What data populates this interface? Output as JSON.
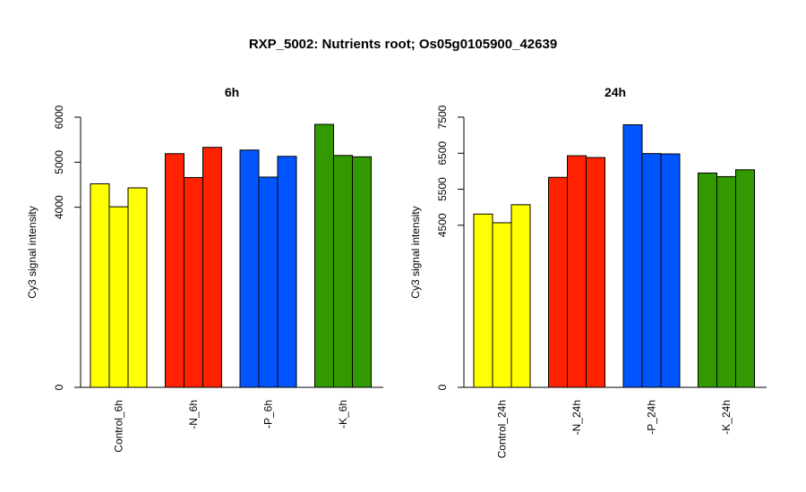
{
  "title": "RXP_5002: Nutrients root; Os05g0105900_42639",
  "colors": {
    "Control": "#ffff00",
    "N": "#ff2200",
    "P": "#0055ff",
    "K": "#339900"
  },
  "chart_data": [
    {
      "type": "bar",
      "title": "6h",
      "ylabel": "Cy3 signal intensity",
      "ylim": [
        0,
        6000
      ],
      "yticks": [
        0,
        4000,
        5000,
        6000
      ],
      "grid": false,
      "groups": [
        {
          "label": "Control_6h",
          "color_key": "Control",
          "values": [
            4520,
            4010,
            4430
          ]
        },
        {
          "label": "-N_6h",
          "color_key": "N",
          "values": [
            5190,
            4660,
            5330
          ]
        },
        {
          "label": "-P_6h",
          "color_key": "P",
          "values": [
            5270,
            4670,
            5130
          ]
        },
        {
          "label": "-K_6h",
          "color_key": "K",
          "values": [
            5840,
            5150,
            5120
          ]
        }
      ]
    },
    {
      "type": "bar",
      "title": "24h",
      "ylabel": "Cy3 signal intensity",
      "ylim": [
        0,
        7500
      ],
      "yticks": [
        0,
        4500,
        5500,
        6500,
        7500
      ],
      "grid": false,
      "groups": [
        {
          "label": "Control_24h",
          "color_key": "Control",
          "values": [
            4810,
            4570,
            5070
          ]
        },
        {
          "label": "-N_24h",
          "color_key": "N",
          "values": [
            5830,
            6430,
            6380
          ]
        },
        {
          "label": "-P_24h",
          "color_key": "P",
          "values": [
            7290,
            6490,
            6480
          ]
        },
        {
          "label": "-K_24h",
          "color_key": "K",
          "values": [
            5950,
            5850,
            6040
          ]
        }
      ]
    }
  ]
}
